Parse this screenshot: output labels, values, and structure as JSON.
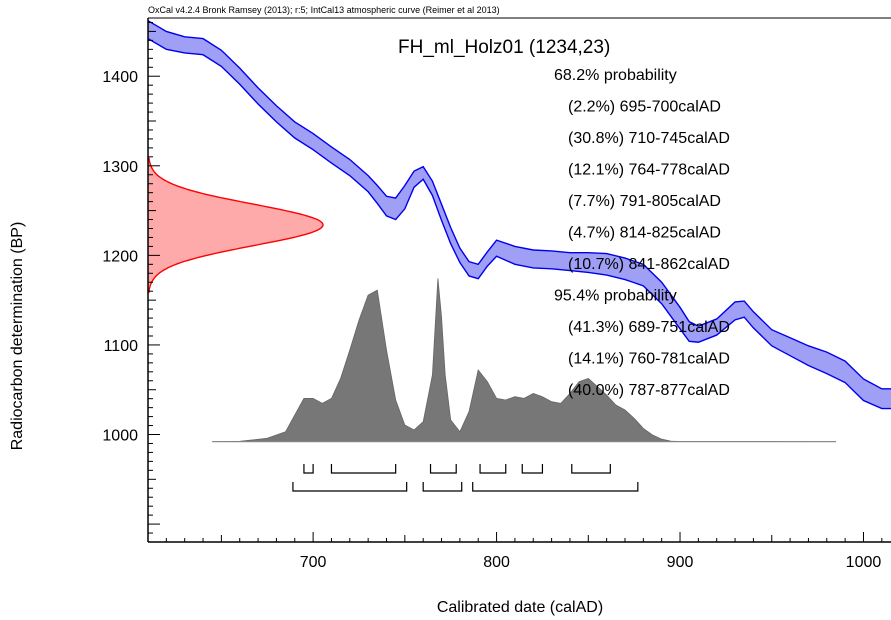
{
  "chart_data": {
    "type": "area",
    "header": "OxCal v4.2.4 Bronk Ramsey (2013); r:5; IntCal13 atmospheric curve (Reimer et al 2013)",
    "title": "FH_ml_Holz01 (1234,23)",
    "xlabel": "Calibrated date (calAD)",
    "ylabel": "Radiocarbon determination (BP)",
    "xlim": [
      610,
      1015
    ],
    "ylim": [
      880,
      1465
    ],
    "x_ticks": [
      700,
      800,
      900,
      1000
    ],
    "y_ticks": [
      1000,
      1100,
      1200,
      1300,
      1400
    ],
    "ranges": {
      "p68_label": "68.2% probability",
      "p68": [
        {
          "text": "(2.2%) 695-700calAD",
          "from": 695,
          "to": 700
        },
        {
          "text": "(30.8%) 710-745calAD",
          "from": 710,
          "to": 745
        },
        {
          "text": "(12.1%) 764-778calAD",
          "from": 764,
          "to": 778
        },
        {
          "text": "(7.7%) 791-805calAD",
          "from": 791,
          "to": 805
        },
        {
          "text": "(4.7%) 814-825calAD",
          "from": 814,
          "to": 825
        },
        {
          "text": "(10.7%) 841-862calAD",
          "from": 841,
          "to": 862
        }
      ],
      "p95_label": "95.4% probability",
      "p95": [
        {
          "text": "(41.3%) 689-751calAD",
          "from": 689,
          "to": 751
        },
        {
          "text": "(14.1%) 760-781calAD",
          "from": 760,
          "to": 781
        },
        {
          "text": "(40.0%) 787-877calAD",
          "from": 787,
          "to": 877
        }
      ]
    },
    "measurement": {
      "mean": 1234,
      "sigma": 23
    },
    "calibration_curve": {
      "x": [
        610,
        620,
        630,
        640,
        650,
        660,
        670,
        680,
        690,
        700,
        710,
        720,
        730,
        735,
        740,
        745,
        750,
        755,
        760,
        765,
        770,
        775,
        780,
        785,
        790,
        795,
        800,
        810,
        820,
        830,
        840,
        850,
        860,
        870,
        880,
        890,
        900,
        905,
        910,
        920,
        930,
        935,
        940,
        950,
        960,
        970,
        980,
        990,
        1000,
        1010,
        1015
      ],
      "mid": [
        1452,
        1440,
        1435,
        1433,
        1420,
        1400,
        1378,
        1358,
        1340,
        1327,
        1312,
        1298,
        1280,
        1268,
        1255,
        1252,
        1265,
        1285,
        1292,
        1275,
        1248,
        1222,
        1200,
        1185,
        1182,
        1196,
        1208,
        1200,
        1196,
        1195,
        1193,
        1192,
        1190,
        1185,
        1178,
        1158,
        1130,
        1115,
        1112,
        1120,
        1138,
        1140,
        1128,
        1108,
        1098,
        1088,
        1080,
        1070,
        1050,
        1040,
        1040
      ],
      "half_width": [
        10,
        10,
        9,
        9,
        9,
        9,
        9,
        9,
        9,
        9,
        9,
        9,
        9,
        10,
        11,
        12,
        13,
        9,
        7,
        8,
        9,
        9,
        8,
        8,
        8,
        8,
        9,
        10,
        10,
        10,
        10,
        11,
        12,
        12,
        12,
        12,
        12,
        11,
        9,
        9,
        10,
        9,
        9,
        9,
        10,
        11,
        12,
        12,
        12,
        11,
        11
      ]
    },
    "prob_dist": {
      "color": "#777777",
      "x": [
        645,
        660,
        675,
        685,
        690,
        695,
        700,
        705,
        710,
        715,
        720,
        725,
        730,
        735,
        740,
        745,
        750,
        755,
        760,
        765,
        768,
        770,
        772,
        775,
        780,
        785,
        790,
        795,
        800,
        805,
        810,
        815,
        820,
        825,
        830,
        835,
        840,
        845,
        850,
        855,
        860,
        865,
        870,
        875,
        880,
        885,
        890,
        895,
        900,
        950,
        985
      ],
      "y": [
        0,
        0.002,
        0.02,
        0.06,
        0.16,
        0.26,
        0.26,
        0.23,
        0.26,
        0.38,
        0.55,
        0.73,
        0.88,
        0.91,
        0.55,
        0.25,
        0.1,
        0.07,
        0.12,
        0.4,
        0.98,
        0.75,
        0.4,
        0.13,
        0.06,
        0.18,
        0.43,
        0.36,
        0.26,
        0.25,
        0.27,
        0.26,
        0.29,
        0.27,
        0.24,
        0.23,
        0.29,
        0.36,
        0.38,
        0.33,
        0.28,
        0.22,
        0.19,
        0.14,
        0.08,
        0.04,
        0.015,
        0.003,
        0.001,
        0.001,
        0
      ]
    },
    "measurement_curve": {
      "color": "#ff0000",
      "fill": "#ffaaaa"
    }
  }
}
